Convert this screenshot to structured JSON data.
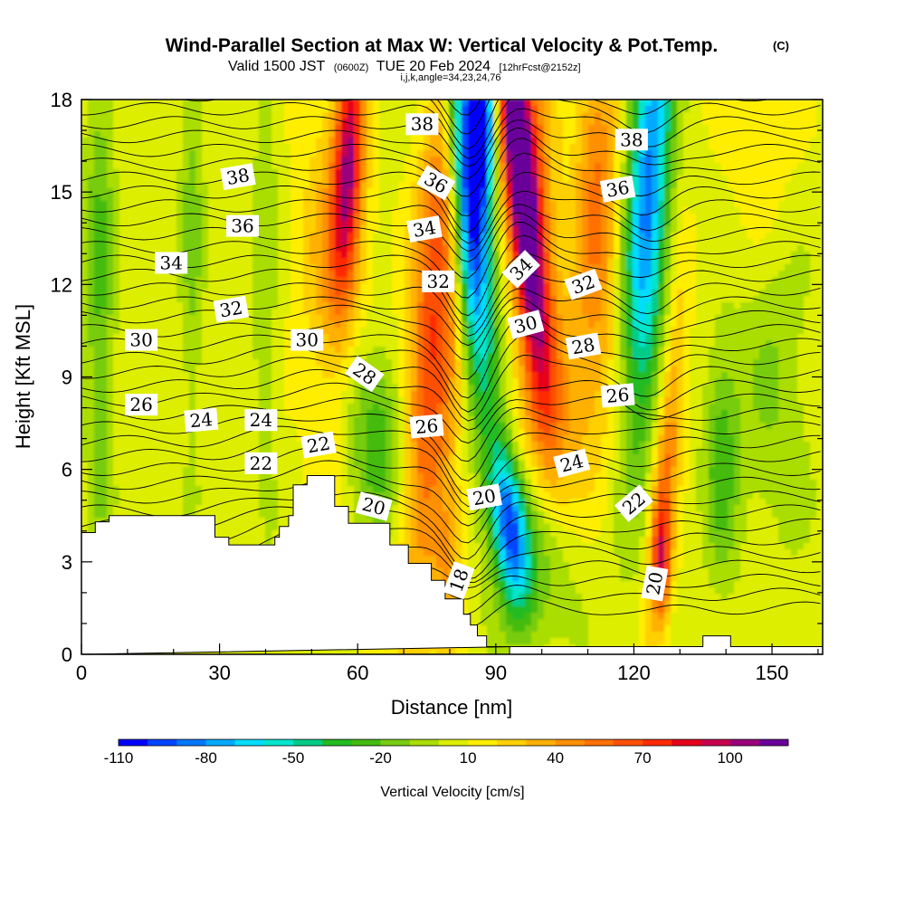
{
  "title": {
    "main": "Wind-Parallel Section at Max W: Vertical Velocity & Pot.Temp.",
    "copyright": "(C)",
    "valid_prefix": "Valid 1500 JST",
    "valid_utc": "(0600Z)",
    "valid_date": "TUE 20 Feb 2024",
    "forecast": "[12hrFcst@2152z]",
    "indices": "i,j,k,angle=34,23,24,76"
  },
  "chart_data": {
    "type": "heatmap",
    "xlabel": "Distance [nm]",
    "ylabel": "Height [Kft MSL]",
    "xlim": [
      0,
      161
    ],
    "ylim": [
      0,
      18
    ],
    "x_ticks": [
      0,
      30,
      60,
      90,
      120,
      150
    ],
    "y_ticks": [
      0,
      3,
      6,
      9,
      12,
      15,
      18
    ],
    "colorbar": {
      "label": "Vertical Velocity [cm/s]",
      "tick_labels": [
        "-110",
        "-80",
        "-50",
        "-20",
        "10",
        "40",
        "70",
        "100"
      ],
      "tick_values": [
        -110,
        -80,
        -50,
        -20,
        10,
        40,
        70,
        100
      ],
      "levels": [
        -110,
        -100,
        -90,
        -80,
        -70,
        -60,
        -50,
        -40,
        -30,
        -20,
        -10,
        0,
        10,
        20,
        30,
        40,
        50,
        60,
        70,
        80,
        90,
        100,
        110
      ],
      "colors": [
        "#0000ff",
        "#0044ff",
        "#0077ff",
        "#00aaff",
        "#00ddff",
        "#00e5cc",
        "#00cc88",
        "#22bb22",
        "#44bb11",
        "#77cc11",
        "#aadd00",
        "#ddee00",
        "#ffee00",
        "#ffd000",
        "#ffb000",
        "#ff9000",
        "#ff7000",
        "#ff5000",
        "#ff2a00",
        "#e6001a",
        "#c8004d",
        "#9a007a",
        "#6a009a"
      ]
    },
    "contour_field": "Potential temperature",
    "contour_labels": [
      {
        "value": "38",
        "x": 74,
        "y": 17.2,
        "rot": 0
      },
      {
        "value": "38",
        "x": 34,
        "y": 15.5,
        "rot": -10
      },
      {
        "value": "36",
        "x": 35,
        "y": 13.9,
        "rot": 0
      },
      {
        "value": "34",
        "x": 19.5,
        "y": 12.7,
        "rot": 0
      },
      {
        "value": "32",
        "x": 32.5,
        "y": 11.2,
        "rot": -10
      },
      {
        "value": "30",
        "x": 13,
        "y": 10.2,
        "rot": 0
      },
      {
        "value": "30",
        "x": 49,
        "y": 10.2,
        "rot": 0
      },
      {
        "value": "26",
        "x": 13,
        "y": 8.1,
        "rot": 0
      },
      {
        "value": "24",
        "x": 26,
        "y": 7.6,
        "rot": -5
      },
      {
        "value": "24",
        "x": 39,
        "y": 7.6,
        "rot": 0
      },
      {
        "value": "22",
        "x": 39,
        "y": 6.2,
        "rot": 0
      },
      {
        "value": "22",
        "x": 51.5,
        "y": 6.8,
        "rot": -10
      },
      {
        "value": "28",
        "x": 61.5,
        "y": 9.1,
        "rot": 35
      },
      {
        "value": "20",
        "x": 63.5,
        "y": 4.8,
        "rot": 15
      },
      {
        "value": "26",
        "x": 75,
        "y": 7.4,
        "rot": -5
      },
      {
        "value": "36",
        "x": 77,
        "y": 15.3,
        "rot": 30
      },
      {
        "value": "34",
        "x": 74.5,
        "y": 13.8,
        "rot": -10
      },
      {
        "value": "32",
        "x": 77.5,
        "y": 12.1,
        "rot": 0
      },
      {
        "value": "20",
        "x": 87.5,
        "y": 5.1,
        "rot": -10
      },
      {
        "value": "18",
        "x": 82,
        "y": 2.4,
        "rot": -70
      },
      {
        "value": "34",
        "x": 95.5,
        "y": 12.5,
        "rot": -45
      },
      {
        "value": "30",
        "x": 96.5,
        "y": 10.7,
        "rot": -15
      },
      {
        "value": "28",
        "x": 109,
        "y": 10.0,
        "rot": -10
      },
      {
        "value": "26",
        "x": 116.5,
        "y": 8.4,
        "rot": -5
      },
      {
        "value": "24",
        "x": 106.5,
        "y": 6.2,
        "rot": -15
      },
      {
        "value": "22",
        "x": 120,
        "y": 4.9,
        "rot": -40
      },
      {
        "value": "20",
        "x": 124.5,
        "y": 2.3,
        "rot": -80
      },
      {
        "value": "32",
        "x": 109,
        "y": 12.0,
        "rot": -20
      },
      {
        "value": "36",
        "x": 116.5,
        "y": 15.1,
        "rot": -10
      },
      {
        "value": "38",
        "x": 119.5,
        "y": 16.7,
        "rot": 0
      }
    ]
  }
}
